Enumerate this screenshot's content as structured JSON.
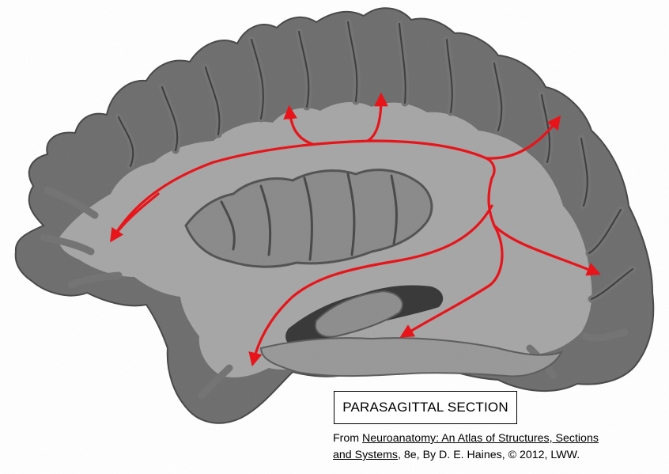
{
  "image": {
    "subject": "brain parasagittal section",
    "colors": {
      "background": "#ffffff",
      "tissue_outer": "#6f6f6f",
      "tissue_white_matter": "#a6a6a6",
      "tissue_gray_matter": "#7a7a7a",
      "arrow": "#e8141a",
      "text": "#000000"
    }
  },
  "label_box": {
    "text": "PARASAGITTAL SECTION"
  },
  "citation": {
    "prefix": "From ",
    "title_line1": "Neuroanatomy: An Atlas of Structures, Sections",
    "title_line2": "and Systems",
    "suffix": ", 8e,  By D. E. Haines, © 2012, LWW."
  }
}
